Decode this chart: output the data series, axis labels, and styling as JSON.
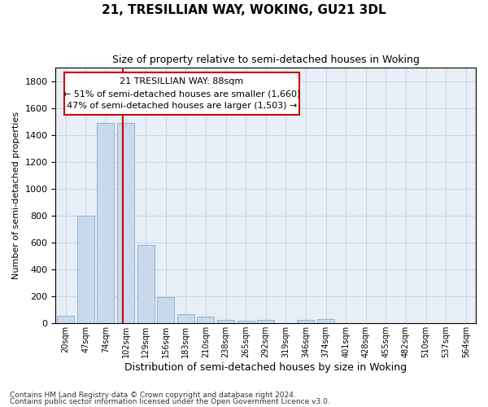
{
  "title": "21, TRESILLIAN WAY, WOKING, GU21 3DL",
  "subtitle": "Size of property relative to semi-detached houses in Woking",
  "xlabel": "Distribution of semi-detached houses by size in Woking",
  "ylabel": "Number of semi-detached properties",
  "footnote1": "Contains HM Land Registry data © Crown copyright and database right 2024.",
  "footnote2": "Contains public sector information licensed under the Open Government Licence v3.0.",
  "bar_labels": [
    "20sqm",
    "47sqm",
    "74sqm",
    "102sqm",
    "129sqm",
    "156sqm",
    "183sqm",
    "210sqm",
    "238sqm",
    "265sqm",
    "292sqm",
    "319sqm",
    "346sqm",
    "374sqm",
    "401sqm",
    "428sqm",
    "455sqm",
    "482sqm",
    "510sqm",
    "537sqm",
    "564sqm"
  ],
  "bar_values": [
    55,
    800,
    1490,
    1490,
    580,
    190,
    65,
    45,
    20,
    15,
    20,
    0,
    25,
    30,
    0,
    0,
    0,
    0,
    0,
    0,
    0
  ],
  "bar_color": "#c9d9eb",
  "bar_edge_color": "#8ab4d4",
  "ylim_max": 1900,
  "yticks": [
    0,
    200,
    400,
    600,
    800,
    1000,
    1200,
    1400,
    1600,
    1800
  ],
  "vline_x": 2.87,
  "vline_color": "#cc0000",
  "ann_line1": "21 TRESILLIAN WAY: 88sqm",
  "ann_line2": "← 51% of semi-detached houses are smaller (1,660)",
  "ann_line3": "47% of semi-detached houses are larger (1,503) →",
  "ann_border_color": "#cc0000",
  "ann_bg_color": "white",
  "grid_color": "#c8d4e8",
  "bg_color": "#e8eef6",
  "title_fontsize": 11,
  "subtitle_fontsize": 9,
  "ylabel_fontsize": 8,
  "xlabel_fontsize": 9,
  "tick_fontsize": 8,
  "xtick_fontsize": 7,
  "ann_fontsize": 8,
  "footnote_fontsize": 6.5
}
